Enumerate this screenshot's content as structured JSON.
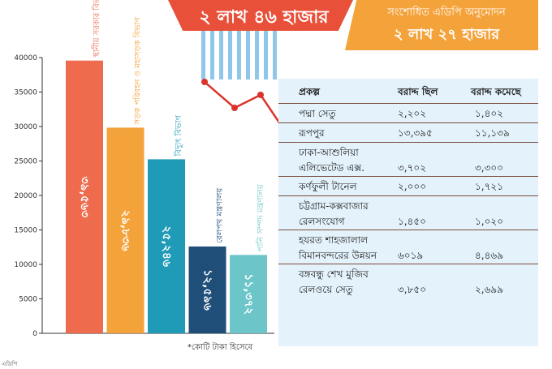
{
  "banner_left": {
    "text": "২ লাখ ৪৬ হাজার"
  },
  "banner_right": {
    "subtitle": "সংশোধিত এডিপি অনুমোদন",
    "text": "২ লাখ ২৭ হাজার"
  },
  "footnote": "*কোটি টাকা হিসেবে",
  "corner_text": "এডিপি",
  "colors": {
    "bar1": "#ee6b4d",
    "bar2": "#f4a23a",
    "bar3": "#1f9bb8",
    "bar4": "#1f4e79",
    "bar5": "#6cc6c9",
    "trend": "#d9342b"
  },
  "chart_data": {
    "type": "bar",
    "categories": [
      "স্থানীয় সরকার বিভাগ",
      "সড়ক পরিবহন ও মহাসড়ক বিভাগ",
      "বিদ্যুৎ বিভাগ",
      "রেলপথ মন্ত্রণালয়",
      "পানি সম্পদ মন্ত্রণালয়"
    ],
    "values": [
      39563,
      29836,
      25246,
      12596,
      11372
    ],
    "value_labels": [
      "৩৯,৫৬৩",
      "২৯,৮৩৬",
      "২৫,২৪৬",
      "১২,৫৯৬",
      "১১,৩৭২"
    ],
    "ylim": [
      0,
      40000
    ],
    "ytick_values": [
      0,
      5000,
      10000,
      15000,
      20000,
      25000,
      30000,
      35000,
      40000
    ],
    "ytick_labels": [
      "0",
      "5000",
      "10000",
      "15000",
      "20000",
      "25000",
      "30000",
      "35000",
      "40000"
    ],
    "grid": false
  },
  "table": {
    "headers": [
      "প্রকল্প",
      "বরাদ্দ ছিল",
      "বরাদ্দ কমেছে"
    ],
    "rows": [
      {
        "lines": [
          "পদ্মা সেতু"
        ],
        "allocated": "২,২০২",
        "reduced": "১,৪০২"
      },
      {
        "lines": [
          "রূপপুর"
        ],
        "allocated": "১৩,৩৯৫",
        "reduced": "১১,১৩৯"
      },
      {
        "lines": [
          "ঢাকা-আশুলিয়া",
          "এলিভেটেড এক্স."
        ],
        "allocated": "৩,৭০২",
        "reduced": "৩,৩০০"
      },
      {
        "lines": [
          "কর্ণফুলী টানেল"
        ],
        "allocated": "২,০০০",
        "reduced": "১,৭২১"
      },
      {
        "lines": [
          "চট্টগ্রাম-কক্সবাজার",
          "রেলসংযোগ"
        ],
        "allocated": "১,৪৫০",
        "reduced": "১,০২০"
      },
      {
        "lines": [
          "হযরত শাহজালাল",
          "বিমানবন্দরের উন্নয়ন"
        ],
        "allocated": "৬০১৯",
        "reduced": "৪,৪৬৯"
      },
      {
        "lines": [
          "বঙ্গবন্ধু শেখ মুজিব",
          "রেলওয়ে সেতু"
        ],
        "allocated": "৩,৮৫০",
        "reduced": "২,৬৯৯"
      }
    ]
  }
}
